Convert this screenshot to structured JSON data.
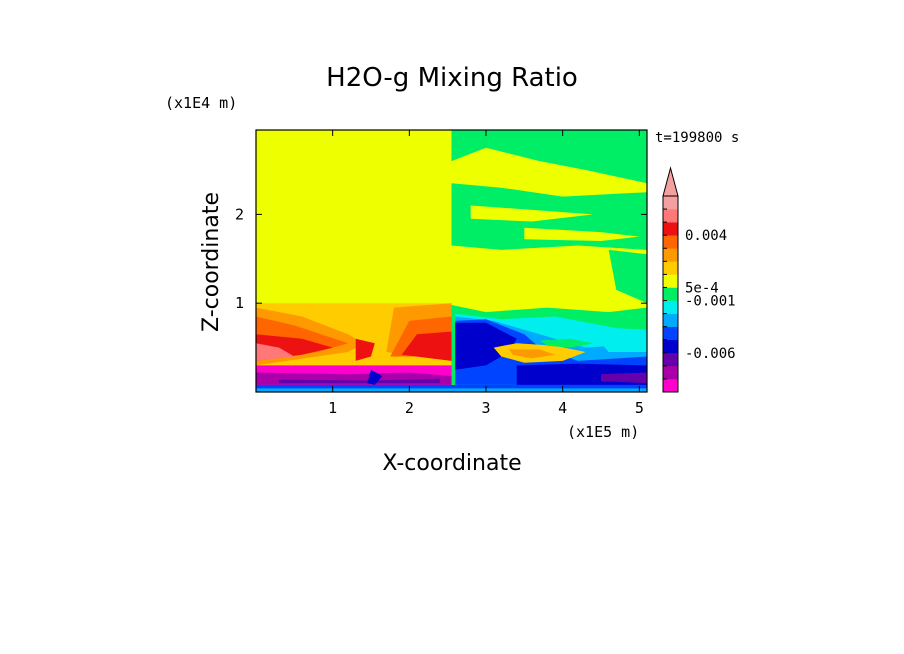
{
  "chart_data": {
    "type": "heatmap",
    "title": "H2O-g Mixing Ratio",
    "xlabel": "X-coordinate",
    "ylabel": "Z-coordinate",
    "x_unit": "(x1E5 m)",
    "y_unit": "(x1E4 m)",
    "time_label": "t=199800 s",
    "xlim": [
      0.0,
      5.1
    ],
    "ylim": [
      0.0,
      2.95
    ],
    "x_ticks": [
      "1",
      "2",
      "3",
      "4",
      "5"
    ],
    "x_tick_values": [
      1,
      2,
      3,
      4,
      5
    ],
    "y_ticks": [
      "1",
      "2"
    ],
    "y_tick_values": [
      1,
      2
    ],
    "colorbar": {
      "colors": [
        "#ff00cc",
        "#aa00aa",
        "#6600aa",
        "#0000cc",
        "#0044ff",
        "#00aaff",
        "#00eeee",
        "#00ee66",
        "#eeff00",
        "#ffcc00",
        "#ff9900",
        "#ff6600",
        "#ee1111",
        "#ff7777",
        "#f4a0a0"
      ],
      "labels": [
        {
          "text": "-0.006",
          "level": 2
        },
        {
          "text": "-0.001",
          "level": 6
        },
        {
          "text": "5e-4",
          "level": 7
        },
        {
          "text": "0.004",
          "level": 11
        }
      ]
    },
    "regions": [
      {
        "c": 8,
        "pts": [
          [
            0,
            0
          ],
          [
            5.1,
            0
          ],
          [
            5.1,
            2.95
          ],
          [
            0,
            2.95
          ]
        ]
      },
      {
        "c": 9,
        "pts": [
          [
            0,
            1.0
          ],
          [
            1.4,
            1.0
          ],
          [
            2.55,
            1.0
          ],
          [
            2.55,
            0.3
          ],
          [
            0,
            0.3
          ]
        ]
      },
      {
        "c": 10,
        "pts": [
          [
            0,
            0.95
          ],
          [
            0.6,
            0.85
          ],
          [
            1.2,
            0.65
          ],
          [
            1.4,
            0.55
          ],
          [
            1.2,
            0.45
          ],
          [
            0,
            0.3
          ]
        ]
      },
      {
        "c": 10,
        "pts": [
          [
            1.8,
            0.95
          ],
          [
            2.55,
            1.0
          ],
          [
            2.55,
            0.35
          ],
          [
            1.7,
            0.45
          ]
        ]
      },
      {
        "c": 11,
        "pts": [
          [
            0,
            0.85
          ],
          [
            0.5,
            0.75
          ],
          [
            1.2,
            0.55
          ],
          [
            0.8,
            0.45
          ],
          [
            0,
            0.35
          ]
        ]
      },
      {
        "c": 11,
        "pts": [
          [
            2.0,
            0.8
          ],
          [
            2.55,
            0.85
          ],
          [
            2.55,
            0.4
          ],
          [
            1.75,
            0.4
          ]
        ]
      },
      {
        "c": 12,
        "pts": [
          [
            0,
            0.65
          ],
          [
            0.6,
            0.6
          ],
          [
            1.0,
            0.5
          ],
          [
            0.6,
            0.42
          ],
          [
            0,
            0.35
          ]
        ]
      },
      {
        "c": 12,
        "pts": [
          [
            1.3,
            0.6
          ],
          [
            1.55,
            0.55
          ],
          [
            1.5,
            0.4
          ],
          [
            1.3,
            0.35
          ]
        ]
      },
      {
        "c": 12,
        "pts": [
          [
            2.1,
            0.65
          ],
          [
            2.55,
            0.68
          ],
          [
            2.55,
            0.35
          ],
          [
            1.9,
            0.42
          ]
        ]
      },
      {
        "c": 13,
        "pts": [
          [
            0,
            0.55
          ],
          [
            0.3,
            0.5
          ],
          [
            0.5,
            0.4
          ],
          [
            0,
            0.35
          ]
        ]
      },
      {
        "c": 0,
        "pts": [
          [
            0,
            0.3
          ],
          [
            2.55,
            0.3
          ],
          [
            2.55,
            0.08
          ],
          [
            0,
            0.08
          ]
        ]
      },
      {
        "c": 1,
        "pts": [
          [
            0,
            0.22
          ],
          [
            1.2,
            0.2
          ],
          [
            2.0,
            0.22
          ],
          [
            2.55,
            0.18
          ],
          [
            2.55,
            0.08
          ],
          [
            0,
            0.08
          ]
        ]
      },
      {
        "c": 2,
        "pts": [
          [
            0.3,
            0.14
          ],
          [
            1.5,
            0.13
          ],
          [
            2.4,
            0.15
          ],
          [
            2.4,
            0.1
          ],
          [
            0.3,
            0.1
          ]
        ]
      },
      {
        "c": 4,
        "pts": [
          [
            0,
            0.08
          ],
          [
            5.1,
            0.08
          ],
          [
            5.1,
            0
          ],
          [
            0,
            0
          ]
        ]
      },
      {
        "c": 5,
        "pts": [
          [
            0,
            0.04
          ],
          [
            5.1,
            0.04
          ],
          [
            5.1,
            0
          ],
          [
            0,
            0
          ]
        ]
      },
      {
        "c": 3,
        "pts": [
          [
            1.5,
            0.25
          ],
          [
            1.65,
            0.18
          ],
          [
            1.55,
            0.08
          ],
          [
            1.45,
            0.1
          ]
        ]
      },
      {
        "c": 7,
        "pts": [
          [
            2.55,
            2.95
          ],
          [
            5.1,
            2.95
          ],
          [
            5.1,
            2.35
          ],
          [
            4.3,
            2.5
          ],
          [
            3.7,
            2.6
          ],
          [
            3.0,
            2.75
          ],
          [
            2.55,
            2.6
          ]
        ]
      },
      {
        "c": 7,
        "pts": [
          [
            2.55,
            2.35
          ],
          [
            3.2,
            2.3
          ],
          [
            4.0,
            2.2
          ],
          [
            5.1,
            2.25
          ],
          [
            5.1,
            1.6
          ],
          [
            4.2,
            1.65
          ],
          [
            3.2,
            1.6
          ],
          [
            2.55,
            1.65
          ]
        ]
      },
      {
        "c": 8,
        "pts": [
          [
            2.8,
            2.1
          ],
          [
            3.6,
            2.05
          ],
          [
            4.4,
            2.0
          ],
          [
            3.6,
            1.92
          ],
          [
            2.8,
            1.95
          ]
        ]
      },
      {
        "c": 8,
        "pts": [
          [
            3.2,
            2.45
          ],
          [
            4.0,
            2.4
          ],
          [
            4.6,
            2.35
          ],
          [
            4.0,
            2.3
          ],
          [
            3.2,
            2.35
          ]
        ]
      },
      {
        "c": 8,
        "pts": [
          [
            3.5,
            1.85
          ],
          [
            4.5,
            1.8
          ],
          [
            5.0,
            1.75
          ],
          [
            4.5,
            1.7
          ],
          [
            3.5,
            1.72
          ]
        ]
      },
      {
        "c": 7,
        "pts": [
          [
            4.6,
            1.6
          ],
          [
            5.1,
            1.55
          ],
          [
            5.1,
            1.0
          ],
          [
            4.7,
            1.15
          ]
        ]
      },
      {
        "c": 7,
        "pts": [
          [
            2.55,
            0.98
          ],
          [
            3.0,
            0.9
          ],
          [
            3.8,
            0.95
          ],
          [
            4.6,
            0.9
          ],
          [
            5.1,
            0.95
          ],
          [
            5.1,
            0.08
          ],
          [
            2.55,
            0.08
          ]
        ]
      },
      {
        "c": 6,
        "pts": [
          [
            2.6,
            0.88
          ],
          [
            3.2,
            0.82
          ],
          [
            3.9,
            0.85
          ],
          [
            4.7,
            0.72
          ],
          [
            5.1,
            0.7
          ],
          [
            5.1,
            0.08
          ],
          [
            2.6,
            0.08
          ]
        ]
      },
      {
        "c": 5,
        "pts": [
          [
            2.6,
            0.85
          ],
          [
            3.1,
            0.8
          ],
          [
            3.5,
            0.7
          ],
          [
            3.9,
            0.6
          ],
          [
            4.3,
            0.5
          ],
          [
            5.1,
            0.55
          ],
          [
            5.1,
            0.08
          ],
          [
            2.6,
            0.08
          ]
        ]
      },
      {
        "c": 4,
        "pts": [
          [
            2.6,
            0.8
          ],
          [
            3.0,
            0.82
          ],
          [
            3.5,
            0.65
          ],
          [
            3.7,
            0.5
          ],
          [
            4.2,
            0.35
          ],
          [
            5.1,
            0.4
          ],
          [
            5.1,
            0.08
          ],
          [
            2.6,
            0.08
          ]
        ]
      },
      {
        "c": 3,
        "pts": [
          [
            2.6,
            0.78
          ],
          [
            3.0,
            0.78
          ],
          [
            3.4,
            0.6
          ],
          [
            3.3,
            0.45
          ],
          [
            3.0,
            0.3
          ],
          [
            2.6,
            0.25
          ]
        ]
      },
      {
        "c": 3,
        "pts": [
          [
            3.4,
            0.3
          ],
          [
            4.2,
            0.32
          ],
          [
            5.1,
            0.3
          ],
          [
            5.1,
            0.08
          ],
          [
            3.4,
            0.08
          ]
        ]
      },
      {
        "c": 2,
        "pts": [
          [
            4.5,
            0.2
          ],
          [
            5.1,
            0.22
          ],
          [
            5.1,
            0.1
          ],
          [
            4.5,
            0.12
          ]
        ]
      },
      {
        "c": 9,
        "pts": [
          [
            3.1,
            0.5
          ],
          [
            3.4,
            0.55
          ],
          [
            3.9,
            0.52
          ],
          [
            4.3,
            0.45
          ],
          [
            4.0,
            0.35
          ],
          [
            3.5,
            0.33
          ],
          [
            3.2,
            0.4
          ]
        ]
      },
      {
        "c": 10,
        "pts": [
          [
            3.3,
            0.48
          ],
          [
            3.7,
            0.48
          ],
          [
            3.9,
            0.42
          ],
          [
            3.6,
            0.38
          ],
          [
            3.35,
            0.42
          ]
        ]
      },
      {
        "c": 7,
        "pts": [
          [
            3.7,
            0.58
          ],
          [
            4.1,
            0.6
          ],
          [
            4.4,
            0.55
          ],
          [
            4.1,
            0.5
          ],
          [
            3.8,
            0.52
          ]
        ]
      },
      {
        "c": 6,
        "pts": [
          [
            4.5,
            0.55
          ],
          [
            4.9,
            0.6
          ],
          [
            5.1,
            0.6
          ],
          [
            5.1,
            0.45
          ],
          [
            4.6,
            0.45
          ]
        ]
      }
    ]
  }
}
